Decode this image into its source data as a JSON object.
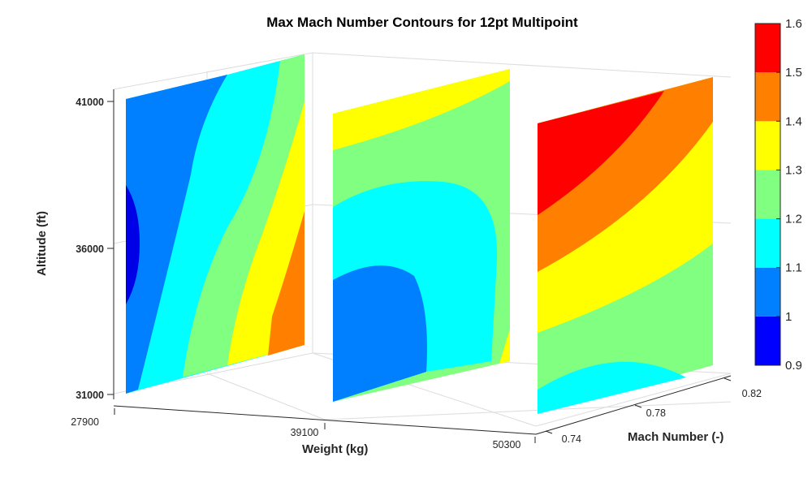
{
  "chart_data": {
    "type": "contour",
    "title": "Max Mach Number Contours for 12pt Multipoint",
    "xlabel": "Weight (kg)",
    "ylabel": "Mach Number (-)",
    "zlabel": "Altitude (ft)",
    "x_ticks": [
      "27900",
      "39100",
      "50300"
    ],
    "y_ticks": [
      "0.74",
      "0.78",
      "0.82"
    ],
    "z_ticks": [
      "31000",
      "36000",
      "41000"
    ],
    "colorbar": {
      "min": 0.9,
      "max": 1.6,
      "ticks": [
        "0.9",
        "1",
        "1.1",
        "1.2",
        "1.3",
        "1.4",
        "1.5",
        "1.6"
      ],
      "bands": [
        {
          "from": 0.9,
          "to": 1.0,
          "color": "#0000ff"
        },
        {
          "from": 1.0,
          "to": 1.1,
          "color": "#0080ff"
        },
        {
          "from": 1.1,
          "to": 1.2,
          "color": "#00ffff"
        },
        {
          "from": 1.2,
          "to": 1.3,
          "color": "#80ff80"
        },
        {
          "from": 1.3,
          "to": 1.4,
          "color": "#ffff00"
        },
        {
          "from": 1.4,
          "to": 1.5,
          "color": "#ff8000"
        },
        {
          "from": 1.5,
          "to": 1.6,
          "color": "#ff0000"
        }
      ]
    },
    "slices": [
      {
        "weight": 27900,
        "value_range": [
          0.9,
          1.5
        ]
      },
      {
        "weight": 39100,
        "value_range": [
          1.0,
          1.4
        ]
      },
      {
        "weight": 50300,
        "value_range": [
          1.1,
          1.6
        ]
      }
    ]
  }
}
